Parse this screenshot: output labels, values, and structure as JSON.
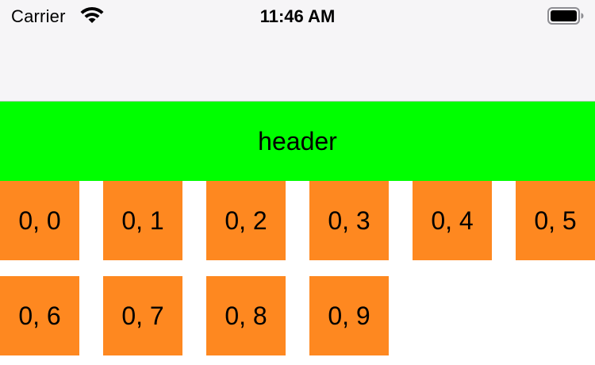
{
  "status_bar": {
    "carrier": "Carrier",
    "time": "11:46 AM",
    "wifi_icon": "wifi-icon",
    "battery_icon": "battery-icon"
  },
  "colors": {
    "nav_background": "#f6f5f7",
    "header_background": "#00ff00",
    "cell_background": "#fe8820"
  },
  "header": {
    "label": "header"
  },
  "cells": [
    "0, 0",
    "0, 1",
    "0, 2",
    "0, 3",
    "0, 4",
    "0, 5",
    "0, 6",
    "0, 7",
    "0, 8",
    "0, 9"
  ]
}
